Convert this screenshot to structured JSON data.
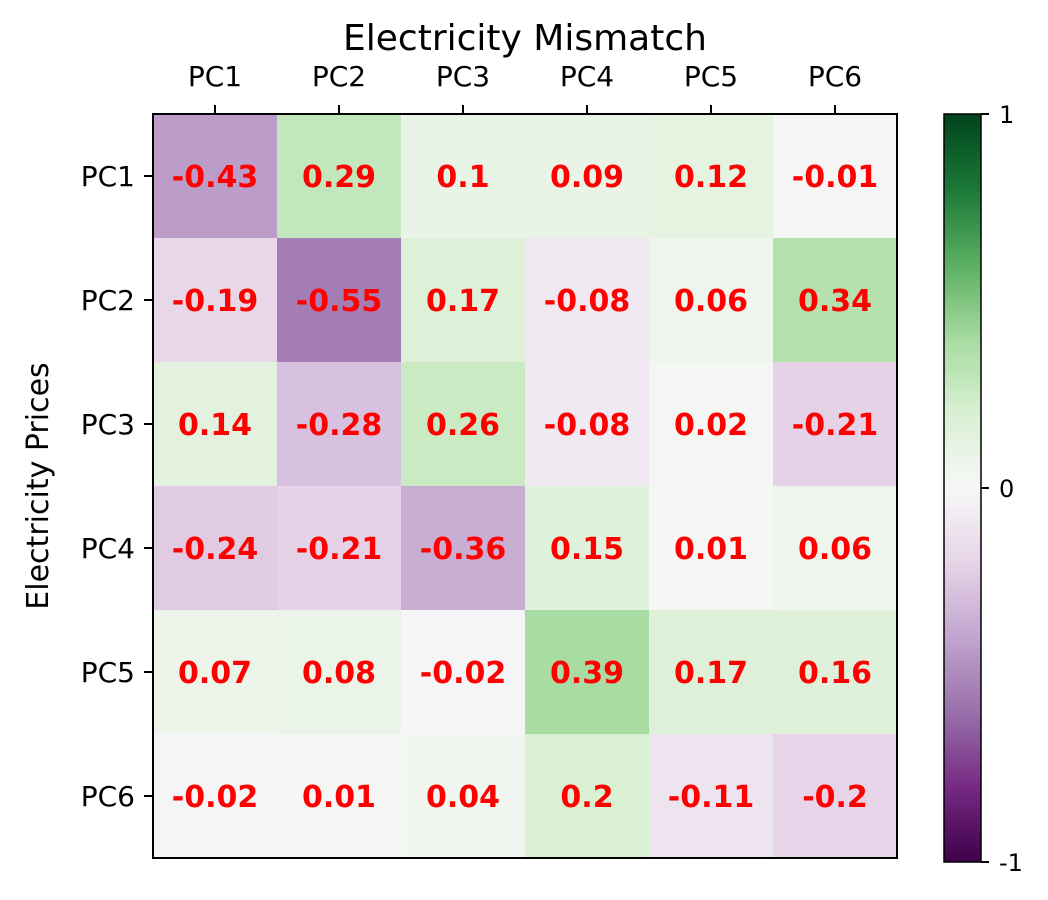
{
  "chart_data": {
    "type": "heatmap",
    "title": "Electricity Mismatch",
    "ylabel": "Electricity Prices",
    "xlabel": "",
    "x_categories": [
      "PC1",
      "PC2",
      "PC3",
      "PC4",
      "PC5",
      "PC6"
    ],
    "y_categories": [
      "PC1",
      "PC2",
      "PC3",
      "PC4",
      "PC5",
      "PC6"
    ],
    "values": [
      [
        -0.43,
        0.29,
        0.1,
        0.09,
        0.12,
        -0.01
      ],
      [
        -0.19,
        -0.55,
        0.17,
        -0.08,
        0.06,
        0.34
      ],
      [
        0.14,
        -0.28,
        0.26,
        -0.08,
        0.02,
        -0.21
      ],
      [
        -0.24,
        -0.21,
        -0.36,
        0.15,
        0.01,
        0.06
      ],
      [
        0.07,
        0.08,
        -0.02,
        0.39,
        0.17,
        0.16
      ],
      [
        -0.02,
        0.01,
        0.04,
        0.2,
        -0.11,
        -0.2
      ]
    ],
    "value_labels": [
      [
        "-0.43",
        "0.29",
        "0.1",
        "0.09",
        "0.12",
        "-0.01"
      ],
      [
        "-0.19",
        "-0.55",
        "0.17",
        "-0.08",
        "0.06",
        "0.34"
      ],
      [
        "0.14",
        "-0.28",
        "0.26",
        "-0.08",
        "0.02",
        "-0.21"
      ],
      [
        "-0.24",
        "-0.21",
        "-0.36",
        "0.15",
        "0.01",
        "0.06"
      ],
      [
        "0.07",
        "0.08",
        "-0.02",
        "0.39",
        "0.17",
        "0.16"
      ],
      [
        "-0.02",
        "0.01",
        "0.04",
        "0.2",
        "-0.11",
        "-0.2"
      ]
    ],
    "colormap": "PRGn",
    "vmin": -1,
    "vmax": 1,
    "colorbar_ticks": [
      {
        "value": 1,
        "label": "1"
      },
      {
        "value": 0,
        "label": "0"
      },
      {
        "value": -1,
        "label": "-1"
      }
    ],
    "x_axis_position": "top",
    "annotation_color": "#ff0000"
  }
}
